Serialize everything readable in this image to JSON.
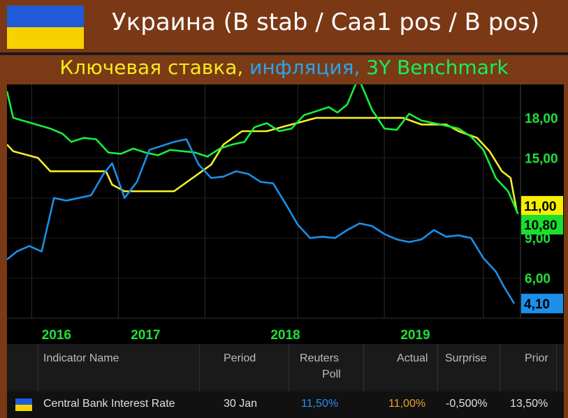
{
  "header": {
    "title": "Украина (B stab / Caa1 pos / B pos)",
    "flag_colors": [
      "#1f5bd8",
      "#f6d300"
    ]
  },
  "subtitle": {
    "part1": "Ключевая ставка,",
    "part2": " инфляция,",
    "part3": " 3Y Benchmark"
  },
  "chart_data": {
    "type": "line",
    "x_ticks": [
      "2016",
      "2017",
      "2018",
      "2019"
    ],
    "y_ticks": [
      "18,00",
      "15,00",
      "9,00",
      "6,00"
    ],
    "y_range": [
      3,
      20.5
    ],
    "x_range": [
      2015.6,
      2019.75
    ],
    "grid": true,
    "series": [
      {
        "color": "#f4ef2a",
        "last_label": "11,00",
        "points": [
          [
            2015.6,
            16.0
          ],
          [
            2015.65,
            15.5
          ],
          [
            2015.85,
            15.0
          ],
          [
            2015.95,
            14.0
          ],
          [
            2016.08,
            14.0
          ],
          [
            2016.25,
            14.0
          ],
          [
            2016.4,
            14.0
          ],
          [
            2016.45,
            13.0
          ],
          [
            2016.55,
            12.5
          ],
          [
            2016.95,
            12.5
          ],
          [
            2017.1,
            13.5
          ],
          [
            2017.25,
            14.5
          ],
          [
            2017.35,
            16.0
          ],
          [
            2017.5,
            17.0
          ],
          [
            2017.7,
            17.0
          ],
          [
            2017.9,
            17.5
          ],
          [
            2018.1,
            18.0
          ],
          [
            2018.4,
            18.0
          ],
          [
            2018.8,
            18.0
          ],
          [
            2018.95,
            17.5
          ],
          [
            2019.15,
            17.5
          ],
          [
            2019.25,
            17.0
          ],
          [
            2019.4,
            16.5
          ],
          [
            2019.5,
            15.5
          ],
          [
            2019.6,
            14.0
          ],
          [
            2019.67,
            13.5
          ],
          [
            2019.72,
            11.0
          ]
        ]
      },
      {
        "color": "#16ef3c",
        "last_label": "10,80",
        "points": [
          [
            2015.6,
            20.0
          ],
          [
            2015.65,
            18.0
          ],
          [
            2015.8,
            17.6
          ],
          [
            2015.95,
            17.2
          ],
          [
            2016.05,
            16.8
          ],
          [
            2016.12,
            16.2
          ],
          [
            2016.22,
            16.5
          ],
          [
            2016.32,
            16.4
          ],
          [
            2016.42,
            15.4
          ],
          [
            2016.52,
            15.3
          ],
          [
            2016.62,
            15.7
          ],
          [
            2016.72,
            15.4
          ],
          [
            2016.82,
            15.2
          ],
          [
            2016.92,
            15.6
          ],
          [
            2017.02,
            15.5
          ],
          [
            2017.12,
            15.4
          ],
          [
            2017.22,
            15.1
          ],
          [
            2017.32,
            15.7
          ],
          [
            2017.42,
            16.0
          ],
          [
            2017.52,
            16.2
          ],
          [
            2017.6,
            17.3
          ],
          [
            2017.7,
            17.6
          ],
          [
            2017.8,
            17.0
          ],
          [
            2017.9,
            17.2
          ],
          [
            2018.0,
            18.2
          ],
          [
            2018.1,
            18.5
          ],
          [
            2018.2,
            18.8
          ],
          [
            2018.27,
            18.4
          ],
          [
            2018.35,
            19.0
          ],
          [
            2018.44,
            21.0
          ],
          [
            2018.55,
            18.6
          ],
          [
            2018.65,
            17.2
          ],
          [
            2018.75,
            17.1
          ],
          [
            2018.85,
            18.3
          ],
          [
            2018.95,
            17.8
          ],
          [
            2019.05,
            17.6
          ],
          [
            2019.15,
            17.4
          ],
          [
            2019.25,
            17.2
          ],
          [
            2019.35,
            16.6
          ],
          [
            2019.45,
            15.6
          ],
          [
            2019.55,
            13.5
          ],
          [
            2019.65,
            12.5
          ],
          [
            2019.73,
            10.8
          ]
        ]
      },
      {
        "color": "#1c8fe8",
        "last_label": "4,10",
        "points": [
          [
            2015.6,
            7.4
          ],
          [
            2015.68,
            8.0
          ],
          [
            2015.78,
            8.4
          ],
          [
            2015.88,
            8.0
          ],
          [
            2015.98,
            12.0
          ],
          [
            2016.08,
            11.8
          ],
          [
            2016.18,
            12.0
          ],
          [
            2016.28,
            12.2
          ],
          [
            2016.38,
            13.8
          ],
          [
            2016.45,
            14.6
          ],
          [
            2016.55,
            12.0
          ],
          [
            2016.65,
            13.2
          ],
          [
            2016.75,
            15.6
          ],
          [
            2016.85,
            15.9
          ],
          [
            2016.95,
            16.2
          ],
          [
            2017.05,
            16.4
          ],
          [
            2017.15,
            14.5
          ],
          [
            2017.25,
            13.5
          ],
          [
            2017.35,
            13.6
          ],
          [
            2017.45,
            14.0
          ],
          [
            2017.55,
            13.8
          ],
          [
            2017.65,
            13.2
          ],
          [
            2017.75,
            13.1
          ],
          [
            2017.85,
            11.6
          ],
          [
            2017.95,
            10.0
          ],
          [
            2018.05,
            9.0
          ],
          [
            2018.15,
            9.1
          ],
          [
            2018.25,
            9.0
          ],
          [
            2018.35,
            9.6
          ],
          [
            2018.45,
            10.1
          ],
          [
            2018.55,
            9.9
          ],
          [
            2018.65,
            9.3
          ],
          [
            2018.75,
            8.9
          ],
          [
            2018.85,
            8.7
          ],
          [
            2018.95,
            8.9
          ],
          [
            2019.05,
            9.6
          ],
          [
            2019.15,
            9.1
          ],
          [
            2019.25,
            9.2
          ],
          [
            2019.35,
            9.0
          ],
          [
            2019.45,
            7.5
          ],
          [
            2019.55,
            6.5
          ],
          [
            2019.62,
            5.3
          ],
          [
            2019.7,
            4.1
          ]
        ]
      }
    ]
  },
  "table": {
    "headers": {
      "indicator": "Indicator Name",
      "period": "Period",
      "poll_line1": "Reuters",
      "poll_line2": "Poll",
      "actual": "Actual",
      "surprise": "Surprise",
      "prior": "Prior"
    },
    "row": {
      "indicator": "Central Bank Interest Rate",
      "period": "30 Jan",
      "poll": "11,50%",
      "actual": "11,00%",
      "surprise": "-0,500%",
      "prior": "13,50%"
    },
    "colors": {
      "poll": "#2a8cf0",
      "actual": "#f0a028"
    }
  }
}
